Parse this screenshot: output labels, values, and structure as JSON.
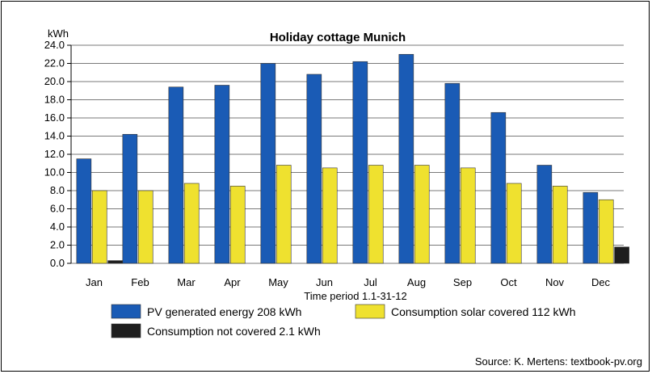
{
  "source_text": "Source: K. Mertens: textbook-pv.org",
  "chart_data": {
    "type": "bar",
    "title": "Holiday cottage Munich",
    "ylabel": "kWh",
    "xlabel": "Time period 1.1-31-12",
    "ylim": [
      0,
      24
    ],
    "yticks": [
      "0.0",
      "2.0",
      "4.0",
      "6.0",
      "8.0",
      "10.0",
      "12.0",
      "14.0",
      "16.0",
      "18.0",
      "20.0",
      "22.0",
      "24.0"
    ],
    "categories": [
      "Jan",
      "Feb",
      "Mar",
      "Apr",
      "May",
      "Jun",
      "Jul",
      "Aug",
      "Sep",
      "Oct",
      "Nov",
      "Dec"
    ],
    "series": [
      {
        "name": "PV generated energy 208 kWh",
        "color": "#1a5bb5",
        "values": [
          11.5,
          14.2,
          19.4,
          19.6,
          22.0,
          20.8,
          22.2,
          23.0,
          19.8,
          16.6,
          10.8,
          7.8
        ]
      },
      {
        "name": "Consumption solar covered 112 kWh",
        "color": "#efe12f",
        "values": [
          8.0,
          8.0,
          8.8,
          8.5,
          10.8,
          10.5,
          10.8,
          10.8,
          10.5,
          8.8,
          8.5,
          7.0
        ]
      },
      {
        "name": "Consumption not covered 2.1 kWh",
        "color": "#1e1e1e",
        "values": [
          0.3,
          0,
          0,
          0,
          0,
          0,
          0,
          0,
          0,
          0,
          0,
          1.8
        ]
      }
    ],
    "grid": true,
    "legend_position": "bottom"
  }
}
